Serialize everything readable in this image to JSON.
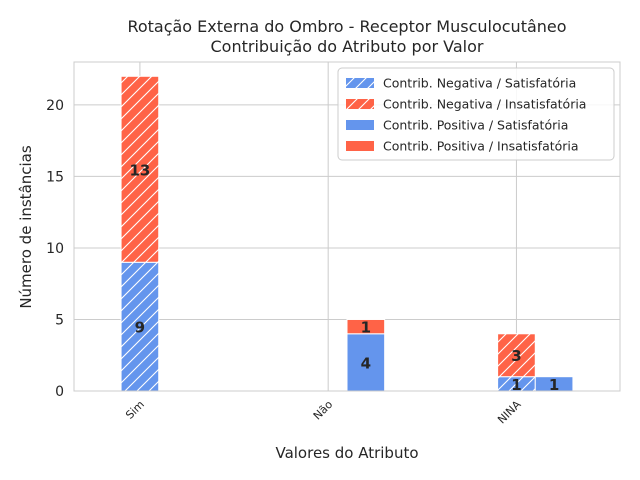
{
  "chart_data": {
    "type": "bar",
    "title_lines": [
      "Rotação Externa do Ombro - Receptor Musculocutâneo",
      "Contribuição do Atributo por Valor"
    ],
    "xlabel": "Valores do Atributo",
    "ylabel": "Número de instâncias",
    "categories": [
      "Sim",
      "Não",
      "NINA"
    ],
    "ylim": [
      0,
      23
    ],
    "yticks": [
      0,
      5,
      10,
      15,
      20
    ],
    "grid": true,
    "legend_position": "top-right",
    "colors": {
      "satisfatoria": "#6495ED",
      "insatisfatoria": "#FF6347",
      "hatch": "#ffffff"
    },
    "series": [
      {
        "name": "Contrib. Negativa / Satisfatória",
        "group": "negativa",
        "stack": "base",
        "color": "#6495ED",
        "hatched": true,
        "values": [
          9,
          0,
          1
        ]
      },
      {
        "name": "Contrib. Negativa / Insatisfatória",
        "group": "negativa",
        "stack": "top",
        "color": "#FF6347",
        "hatched": true,
        "values": [
          13,
          0,
          3
        ]
      },
      {
        "name": "Contrib. Positiva / Satisfatória",
        "group": "positiva",
        "stack": "base",
        "color": "#6495ED",
        "hatched": false,
        "values": [
          0,
          4,
          1
        ]
      },
      {
        "name": "Contrib. Positiva / Insatisfatória",
        "group": "positiva",
        "stack": "top",
        "color": "#FF6347",
        "hatched": false,
        "values": [
          0,
          1,
          0
        ]
      }
    ]
  }
}
